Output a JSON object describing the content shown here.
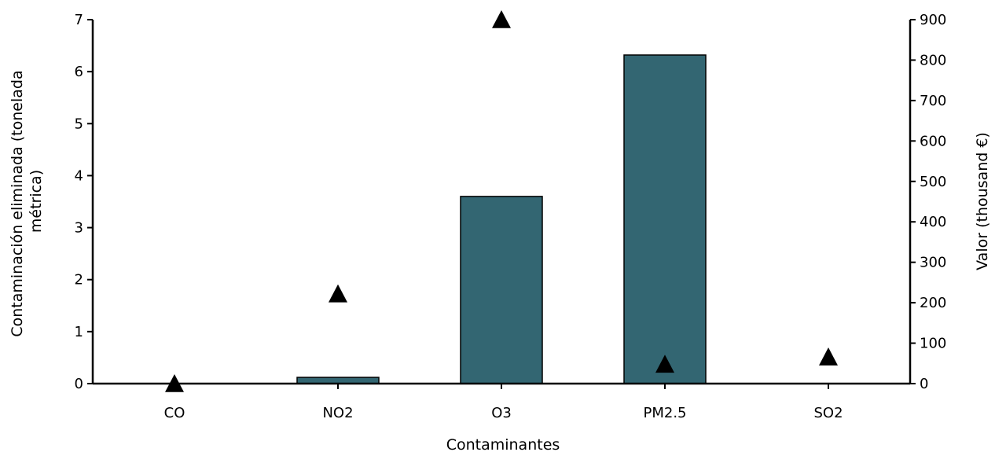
{
  "chart_data": {
    "type": "bar",
    "categories": [
      "CO",
      "NO2",
      "O3",
      "PM2.5",
      "SO2"
    ],
    "series": [
      {
        "type": "bar",
        "axis": "left",
        "values": [
          0.0,
          0.12,
          3.6,
          6.32,
          0.0
        ]
      },
      {
        "type": "scatter",
        "marker": "triangle",
        "axis": "right",
        "values": [
          0,
          222,
          900,
          48,
          66
        ]
      }
    ],
    "xlabel": "Contaminantes",
    "ylabel_lines": [
      "Contaminación  eliminada (tonelada",
      "métrica)"
    ],
    "y2label": "Valor (thousand €)",
    "ylim": [
      0,
      7
    ],
    "y2lim": [
      0,
      900
    ],
    "yticks": [
      "0",
      "1",
      "2",
      "3",
      "4",
      "5",
      "6",
      "7"
    ],
    "y2ticks": [
      "0",
      "100",
      "200",
      "300",
      "400",
      "500",
      "600",
      "700",
      "800",
      "900"
    ],
    "grid": false,
    "legend": "none",
    "colors": {
      "bar": "#336672",
      "bar_stroke": "#000000",
      "marker": "#000000"
    }
  }
}
